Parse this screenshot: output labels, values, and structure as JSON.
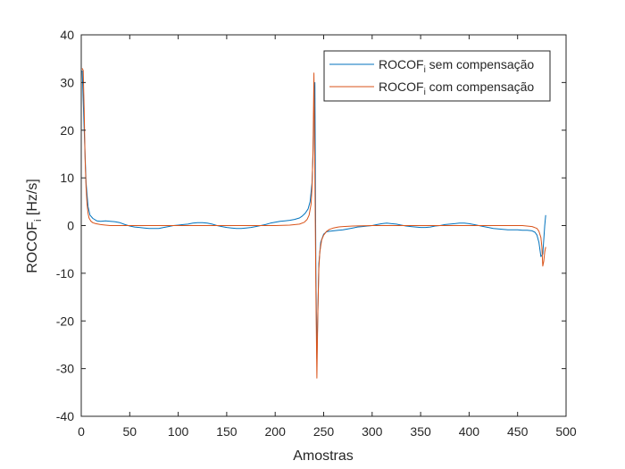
{
  "chart_data": {
    "type": "line",
    "title": "",
    "xlabel": "Amostras",
    "ylabel": {
      "base": "ROCOF",
      "sub": "i",
      "rest": " [Hz/s]"
    },
    "xlim": [
      0,
      500
    ],
    "ylim": [
      -40,
      40
    ],
    "xticks": [
      0,
      50,
      100,
      150,
      200,
      250,
      300,
      350,
      400,
      450,
      500
    ],
    "yticks": [
      -40,
      -30,
      -20,
      -10,
      0,
      10,
      20,
      30,
      40
    ],
    "grid": false,
    "legend_position": "top-right",
    "series": [
      {
        "name": {
          "base": "ROCOF",
          "sub": "i",
          "rest": " sem compensação"
        },
        "color": "#0072BD",
        "x": [
          1,
          3,
          5,
          7,
          9,
          12,
          16,
          20,
          25,
          30,
          35,
          40,
          45,
          50,
          55,
          60,
          65,
          70,
          75,
          80,
          85,
          90,
          95,
          100,
          105,
          110,
          115,
          120,
          125,
          130,
          135,
          140,
          145,
          150,
          155,
          160,
          165,
          170,
          175,
          180,
          185,
          190,
          195,
          200,
          205,
          210,
          215,
          220,
          225,
          228,
          231,
          234,
          236,
          238,
          239,
          240,
          241,
          242,
          243,
          244,
          245,
          247,
          250,
          253,
          256,
          260,
          265,
          270,
          275,
          280,
          285,
          290,
          295,
          300,
          305,
          310,
          315,
          320,
          325,
          330,
          335,
          340,
          345,
          350,
          355,
          360,
          365,
          370,
          375,
          380,
          385,
          390,
          395,
          400,
          405,
          410,
          415,
          420,
          425,
          430,
          435,
          440,
          445,
          450,
          455,
          460,
          465,
          468,
          470,
          472,
          474,
          476,
          478,
          479
        ],
        "y": [
          32.5,
          20,
          9,
          4,
          2.2,
          1.5,
          1,
          0.9,
          1,
          0.9,
          0.8,
          0.6,
          0.2,
          -0.1,
          -0.3,
          -0.4,
          -0.5,
          -0.6,
          -0.6,
          -0.6,
          -0.4,
          -0.2,
          0,
          0.1,
          0.2,
          0.3,
          0.5,
          0.6,
          0.6,
          0.5,
          0.3,
          0,
          -0.2,
          -0.4,
          -0.5,
          -0.6,
          -0.6,
          -0.5,
          -0.4,
          -0.2,
          0,
          0.2,
          0.5,
          0.7,
          0.9,
          1,
          1.1,
          1.3,
          1.6,
          2,
          2.6,
          3.5,
          5,
          9,
          15,
          25,
          30,
          -10,
          -28,
          -18,
          -8,
          -3.5,
          -1.8,
          -1.3,
          -1.2,
          -1.1,
          -1,
          -0.9,
          -0.7,
          -0.5,
          -0.3,
          -0.2,
          -0.1,
          0,
          0.2,
          0.4,
          0.5,
          0.4,
          0.3,
          0.1,
          -0.1,
          -0.2,
          -0.3,
          -0.4,
          -0.4,
          -0.3,
          -0.1,
          0,
          0.2,
          0.3,
          0.4,
          0.5,
          0.5,
          0.4,
          0.2,
          0,
          -0.2,
          -0.4,
          -0.6,
          -0.7,
          -0.8,
          -0.9,
          -0.9,
          -0.9,
          -1,
          -1,
          -1.1,
          -1.4,
          -2,
          -3.5,
          -6.5,
          -6,
          0,
          2.2
        ]
      },
      {
        "name": {
          "base": "ROCOF",
          "sub": "i",
          "rest": " com compensação"
        },
        "color": "#D95319",
        "x": [
          1,
          2,
          3,
          4,
          5,
          6,
          7,
          8,
          10,
          12,
          15,
          20,
          25,
          30,
          35,
          40,
          60,
          80,
          100,
          120,
          140,
          160,
          180,
          200,
          215,
          225,
          230,
          233,
          235,
          237,
          238,
          239,
          240,
          241,
          242,
          243,
          244,
          245,
          246,
          248,
          250,
          253,
          256,
          260,
          265,
          270,
          280,
          300,
          320,
          340,
          360,
          380,
          400,
          420,
          440,
          455,
          465,
          470,
          472,
          474,
          475,
          476,
          477,
          478,
          479
        ],
        "y": [
          33,
          32.5,
          24,
          14,
          8,
          4.5,
          2.6,
          1.6,
          0.9,
          0.6,
          0.4,
          0.2,
          0.1,
          0,
          0,
          0,
          0,
          0,
          0,
          0,
          0,
          0,
          0,
          0,
          0.1,
          0.3,
          0.7,
          1.3,
          2.2,
          4.5,
          8,
          16,
          32,
          10,
          -14,
          -32,
          -18,
          -9,
          -5.5,
          -3,
          -2,
          -1.2,
          -0.8,
          -0.5,
          -0.3,
          -0.2,
          -0.1,
          0,
          0,
          0,
          0,
          0,
          0,
          0,
          0,
          0,
          -0.2,
          -0.6,
          -1.2,
          -2.5,
          -4.5,
          -8.5,
          -7.5,
          -5.5,
          -4.5
        ]
      }
    ]
  }
}
